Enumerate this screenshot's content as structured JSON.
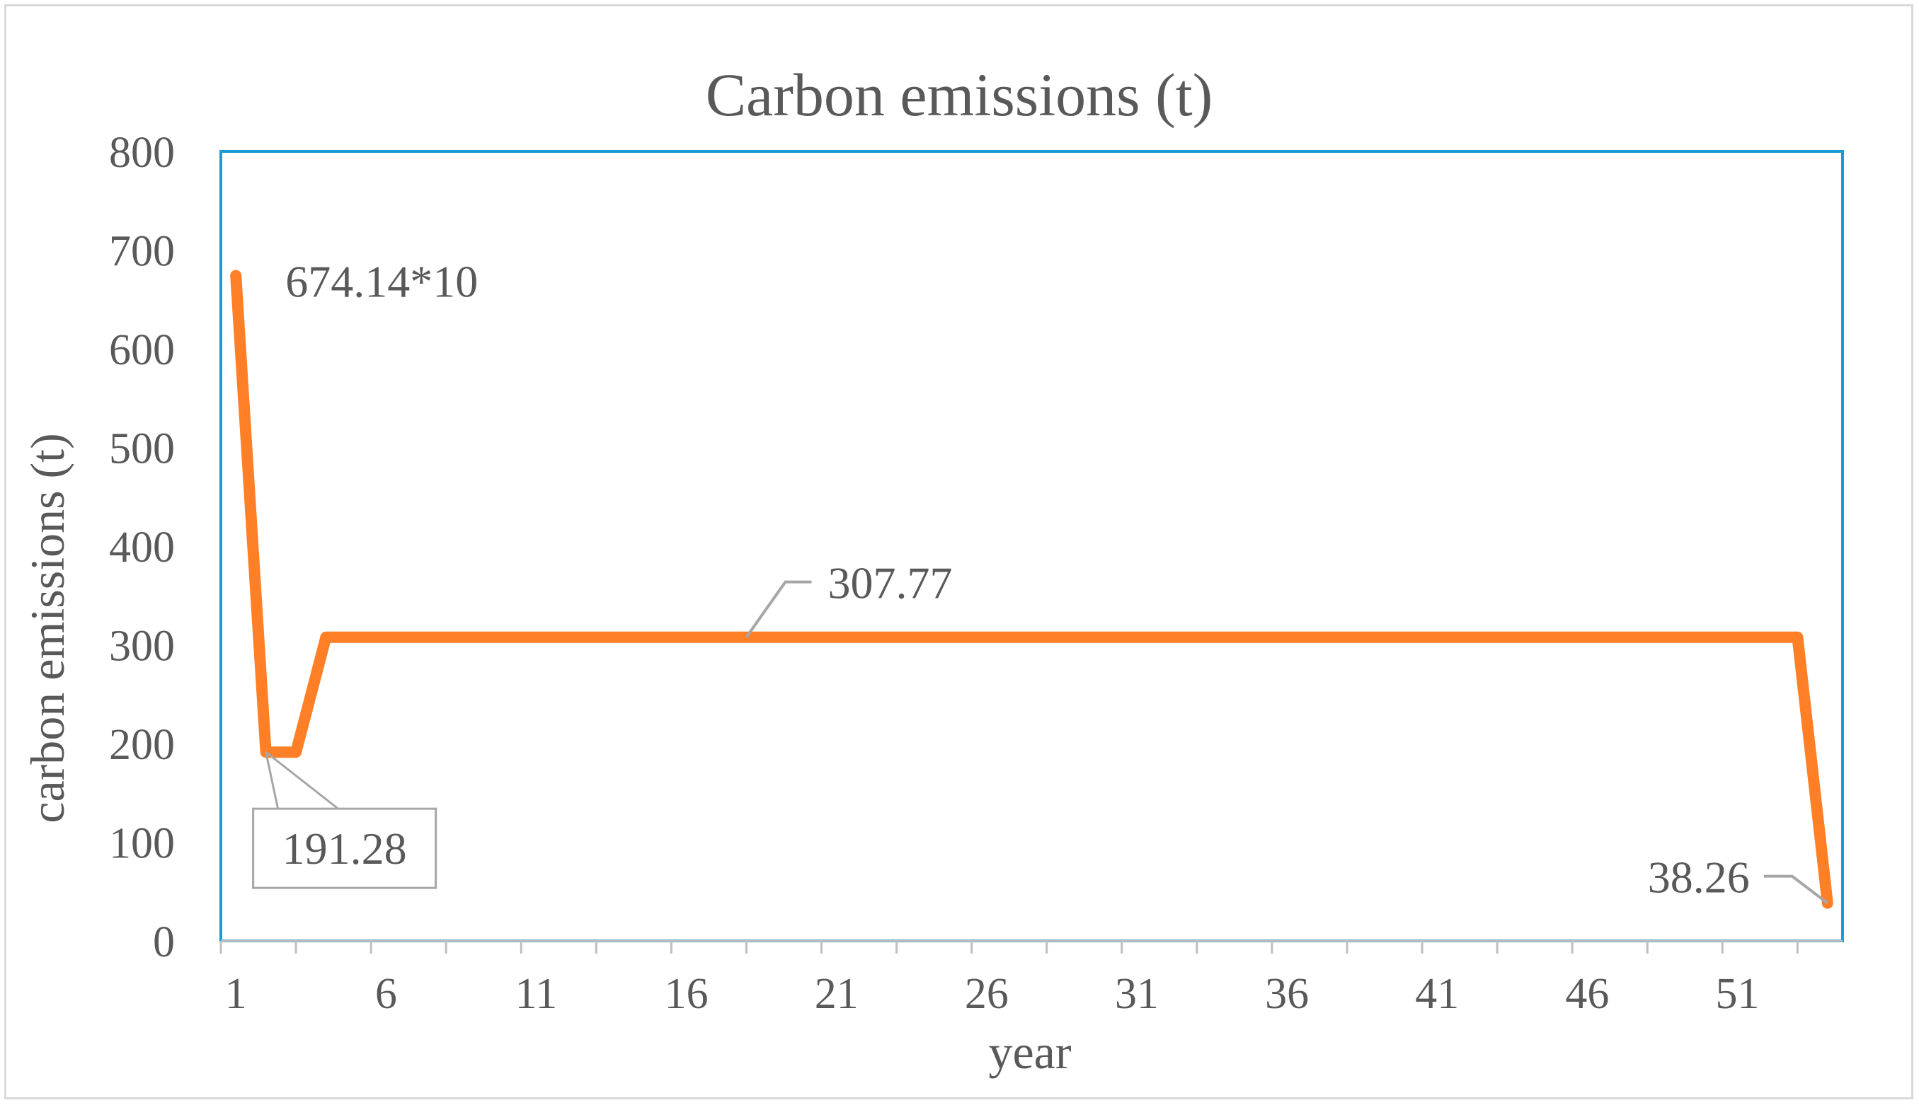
{
  "chart_data": {
    "type": "line",
    "title": "Carbon emissions (t)",
    "xlabel": "year",
    "ylabel": "carbon emissions (t)",
    "x": [
      1,
      2,
      3,
      4,
      5,
      6,
      7,
      8,
      9,
      10,
      11,
      12,
      13,
      14,
      15,
      16,
      17,
      18,
      19,
      20,
      21,
      22,
      23,
      24,
      25,
      26,
      27,
      28,
      29,
      30,
      31,
      32,
      33,
      34,
      35,
      36,
      37,
      38,
      39,
      40,
      41,
      42,
      43,
      44,
      45,
      46,
      47,
      48,
      49,
      50,
      51,
      52,
      53,
      54
    ],
    "series": [
      {
        "values": [
          674.14,
          191.28,
          191.28,
          307.77,
          307.77,
          307.77,
          307.77,
          307.77,
          307.77,
          307.77,
          307.77,
          307.77,
          307.77,
          307.77,
          307.77,
          307.77,
          307.77,
          307.77,
          307.77,
          307.77,
          307.77,
          307.77,
          307.77,
          307.77,
          307.77,
          307.77,
          307.77,
          307.77,
          307.77,
          307.77,
          307.77,
          307.77,
          307.77,
          307.77,
          307.77,
          307.77,
          307.77,
          307.77,
          307.77,
          307.77,
          307.77,
          307.77,
          307.77,
          307.77,
          307.77,
          307.77,
          307.77,
          307.77,
          307.77,
          307.77,
          307.77,
          307.77,
          307.77,
          38.26
        ],
        "color": "#ff7f27"
      }
    ],
    "xlim": [
      0.5,
      54.5
    ],
    "ylim": [
      0,
      800
    ],
    "yticks": [
      0,
      100,
      200,
      300,
      400,
      500,
      600,
      700,
      800
    ],
    "xtick_labels": [
      1,
      6,
      11,
      16,
      21,
      26,
      31,
      36,
      41,
      46,
      51
    ],
    "grid": false,
    "legend": "none",
    "plot_border_color": "#1a9ad6",
    "annotations": [
      {
        "text": "674.14*10",
        "x": 1,
        "y": 674.14,
        "boxed": false
      },
      {
        "text": "191.28",
        "x": 2,
        "y": 191.28,
        "boxed": true
      },
      {
        "text": "307.77",
        "x": 18,
        "y": 307.77,
        "boxed": false
      },
      {
        "text": "38.26",
        "x": 54,
        "y": 38.26,
        "boxed": false
      }
    ]
  }
}
